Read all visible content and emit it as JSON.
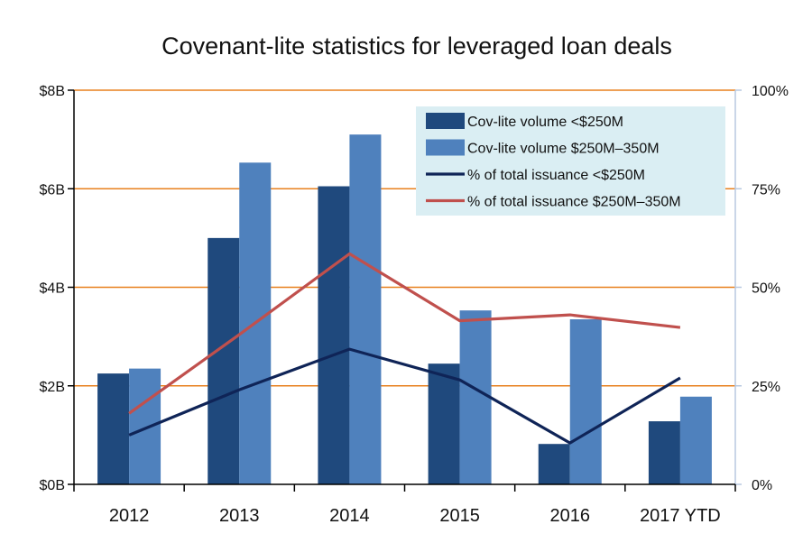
{
  "chart_data": {
    "type": "bar",
    "title": "Covenant-lite statistics for leveraged loan deals",
    "categories": [
      "2012",
      "2013",
      "2014",
      "2015",
      "2016",
      "2017 YTD"
    ],
    "series": [
      {
        "name": "Cov-lite volume <$250M",
        "kind": "bar",
        "axis": "left",
        "color": "#1f497d",
        "values": [
          2.25,
          5.0,
          6.05,
          2.45,
          0.82,
          1.28
        ]
      },
      {
        "name": "Cov-lite volume $250M–350M",
        "kind": "bar",
        "axis": "left",
        "color": "#4f81bd",
        "values": [
          2.35,
          6.53,
          7.1,
          3.53,
          3.35,
          1.78
        ]
      },
      {
        "name": "% of total issuance <$250M",
        "kind": "line",
        "axis": "right",
        "color": "#0f2457",
        "values": [
          12.5,
          24.0,
          34.3,
          26.5,
          10.5,
          27.0
        ]
      },
      {
        "name": "% of total issuance $250M–350M",
        "kind": "line",
        "axis": "right",
        "color": "#c0504d",
        "values": [
          18.0,
          38.0,
          58.5,
          41.5,
          43.0,
          39.8
        ]
      }
    ],
    "y_left": {
      "ylim": [
        0,
        8
      ],
      "ticks": [
        0,
        2,
        4,
        6,
        8
      ],
      "tick_labels": [
        "$0B",
        "$2B",
        "$4B",
        "$6B",
        "$8B"
      ]
    },
    "y_right": {
      "ylim": [
        0,
        100
      ],
      "ticks": [
        0,
        25,
        50,
        75,
        100
      ],
      "tick_labels": [
        "0%",
        "25%",
        "50%",
        "75%",
        "100%"
      ]
    },
    "grid": {
      "enabled": true,
      "color": "#e8801e"
    },
    "legend": {
      "placement": "top-right",
      "background": "#daeef3"
    },
    "xlabel": "",
    "ylabel": ""
  }
}
